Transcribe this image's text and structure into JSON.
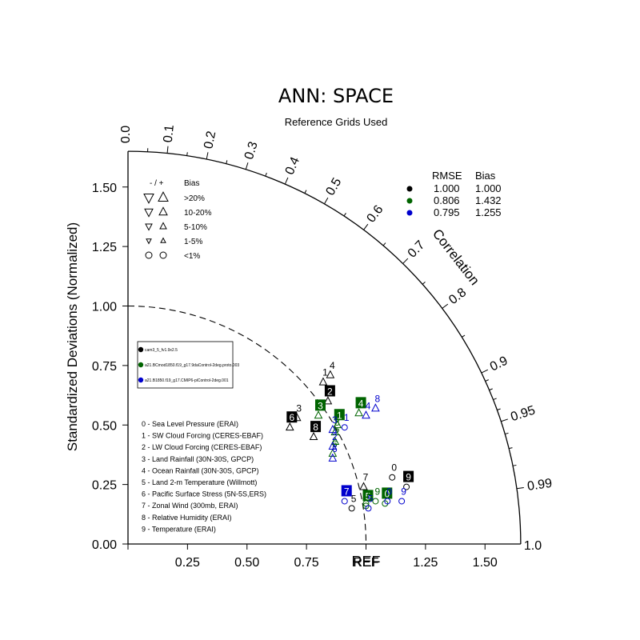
{
  "title": "ANN: SPACE",
  "subtitle": "Reference Grids Used",
  "y_axis_label": "Standardized Deviations (Normalized)",
  "correlation_label": "Correlation",
  "ref_label": "REF",
  "bias_legend": {
    "header_sign": "- / +",
    "header_bias": "Bias",
    "rows": [
      ">20%",
      "10-20%",
      "5-10%",
      "1-5%",
      "<1%"
    ]
  },
  "stats_legend": {
    "header_rmse": "RMSE",
    "header_bias": "Bias",
    "rows": [
      {
        "color": "#000000",
        "rmse": "1.000",
        "bias": "1.000"
      },
      {
        "color": "#006400",
        "rmse": "0.806",
        "bias": "1.432"
      },
      {
        "color": "#0000cd",
        "rmse": "0.795",
        "bias": "1.255"
      }
    ]
  },
  "case_legend": [
    {
      "color": "#000000",
      "name": "cam3_5_fv1.9x2.5"
    },
    {
      "color": "#006400",
      "name": "a21.BCmod1850.f19_g17.9daControl-2deg.proto.003"
    },
    {
      "color": "#0000cd",
      "name": "a21.B1850.f19_g17.CMIP6-piControl-2deg.001"
    }
  ],
  "variables": [
    "0 - Sea Level Pressure (ERAI)",
    "1 - SW Cloud Forcing (CERES-EBAF)",
    "2 - LW Cloud Forcing (CERES-EBAF)",
    "3 - Land Rainfall (30N-30S, GPCP)",
    "4 - Ocean Rainfall (30N-30S, GPCP)",
    "5 - Land 2-m Temperature (Willmott)",
    "6 - Pacific Surface Stress (5N-5S,ERS)",
    "7 - Zonal Wind (300mb, ERAI)",
    "8 - Relative Humidity (ERAI)",
    "9 - Temperature (ERAI)"
  ],
  "chart_data": {
    "type": "scatter",
    "subtype": "taylor-diagram",
    "xlim": [
      0,
      1.65
    ],
    "ylim": [
      0,
      1.65
    ],
    "std_ticks": [
      "0.25",
      "0.50",
      "0.75",
      "1.00",
      "1.25",
      "1.50"
    ],
    "x_tick_labels": [
      "0.00",
      "0.25",
      "0.50",
      "0.75",
      "REF",
      "1.25",
      "1.50"
    ],
    "y_tick_labels": [
      "0.00",
      "0.25",
      "0.50",
      "0.75",
      "1.00",
      "1.25",
      "1.50"
    ],
    "correlation_ticks": [
      "0.0",
      "0.1",
      "0.2",
      "0.3",
      "0.4",
      "0.5",
      "0.6",
      "0.7",
      "0.8",
      "0.9",
      "0.95",
      "0.99",
      "1.0"
    ],
    "reference_std": 1.0,
    "series": [
      {
        "name": "cam3_5_fv1.9x2.5",
        "color": "#000000",
        "points": [
          {
            "label": "0",
            "x": 1.11,
            "y": 0.28,
            "box": false,
            "marker": "circle"
          },
          {
            "label": "1",
            "x": 0.82,
            "y": 0.68,
            "box": false,
            "marker": "up"
          },
          {
            "label": "2",
            "x": 0.84,
            "y": 0.6,
            "box": true,
            "marker": "up"
          },
          {
            "label": "3",
            "x": 0.71,
            "y": 0.53,
            "box": false,
            "marker": "up"
          },
          {
            "label": "4",
            "x": 0.85,
            "y": 0.71,
            "box": false,
            "marker": "up"
          },
          {
            "label": "5",
            "x": 0.94,
            "y": 0.15,
            "box": false,
            "marker": "circle"
          },
          {
            "label": "6",
            "x": 0.68,
            "y": 0.49,
            "box": true,
            "marker": "up"
          },
          {
            "label": "7",
            "x": 0.99,
            "y": 0.24,
            "box": false,
            "marker": "up"
          },
          {
            "label": "8",
            "x": 0.78,
            "y": 0.45,
            "box": true,
            "marker": "up"
          },
          {
            "label": "9",
            "x": 1.17,
            "y": 0.24,
            "box": true,
            "marker": "circle"
          }
        ]
      },
      {
        "name": "a21.BCmod1850.f19_g17.9daControl-2deg.proto.003",
        "color": "#006400",
        "points": [
          {
            "label": "0",
            "x": 1.08,
            "y": 0.17,
            "box": true,
            "marker": "circle"
          },
          {
            "label": "1",
            "x": 0.88,
            "y": 0.5,
            "box": true,
            "marker": "up"
          },
          {
            "label": "2",
            "x": 0.87,
            "y": 0.43,
            "box": false,
            "marker": "up"
          },
          {
            "label": "3",
            "x": 0.8,
            "y": 0.54,
            "box": true,
            "marker": "up"
          },
          {
            "label": "4",
            "x": 0.97,
            "y": 0.55,
            "box": true,
            "marker": "up"
          },
          {
            "label": "5",
            "x": 1.0,
            "y": 0.16,
            "box": true,
            "marker": "circle"
          },
          {
            "label": "6",
            "x": 0.86,
            "y": 0.38,
            "box": false,
            "marker": "up"
          },
          {
            "label": "7",
            "x": 1.0,
            "y": 0.17,
            "box": false,
            "marker": "circle"
          },
          {
            "label": "8",
            "x": 0.87,
            "y": 0.47,
            "box": false,
            "marker": "up"
          },
          {
            "label": "9",
            "x": 1.04,
            "y": 0.18,
            "box": false,
            "marker": "circle"
          }
        ]
      },
      {
        "name": "a21.B1850.f19_g17.CMIP6-piControl-2deg.001",
        "color": "#0000cd",
        "points": [
          {
            "label": "0",
            "x": 1.09,
            "y": 0.18,
            "box": false,
            "marker": "circle"
          },
          {
            "label": "1",
            "x": 0.91,
            "y": 0.49,
            "box": false,
            "marker": "circle"
          },
          {
            "label": "2",
            "x": 0.86,
            "y": 0.41,
            "box": false,
            "marker": "up"
          },
          {
            "label": "3",
            "x": 0.86,
            "y": 0.48,
            "box": false,
            "marker": "up"
          },
          {
            "label": "4",
            "x": 1.0,
            "y": 0.54,
            "box": false,
            "marker": "up"
          },
          {
            "label": "5",
            "x": 1.01,
            "y": 0.15,
            "box": false,
            "marker": "circle"
          },
          {
            "label": "6",
            "x": 0.86,
            "y": 0.36,
            "box": false,
            "marker": "up"
          },
          {
            "label": "7",
            "x": 0.91,
            "y": 0.18,
            "box": true,
            "marker": "circle"
          },
          {
            "label": "8",
            "x": 1.04,
            "y": 0.57,
            "box": false,
            "marker": "up"
          },
          {
            "label": "9",
            "x": 1.15,
            "y": 0.18,
            "box": false,
            "marker": "circle"
          }
        ]
      }
    ]
  }
}
